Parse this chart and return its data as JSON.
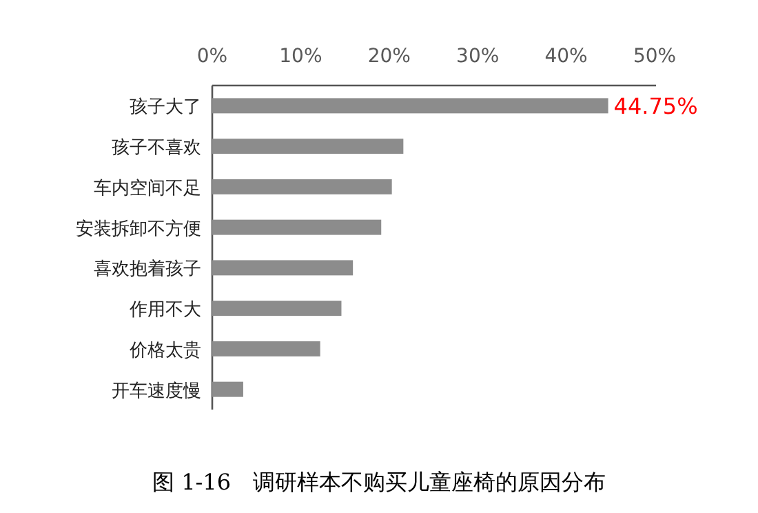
{
  "chart_data": {
    "type": "bar",
    "orientation": "horizontal",
    "title": "图 1-16　调研样本不购买儿童座椅的原因分布",
    "categories": [
      "孩子大了",
      "孩子不喜欢",
      "车内空间不足",
      "安装拆卸不方便",
      "喜欢抱着孩子",
      "作用不大",
      "价格太贵",
      "开车速度慢"
    ],
    "values": [
      44.75,
      21.6,
      20.3,
      19.1,
      15.9,
      14.6,
      12.2,
      3.5
    ],
    "value_labels": [
      "44.75%",
      null,
      null,
      null,
      null,
      null,
      null,
      null
    ],
    "color": "#8c8c8c",
    "xlim": [
      0,
      50
    ],
    "xticks": [
      {
        "value": 0,
        "label": "0%"
      },
      {
        "value": 10,
        "label": "10%"
      },
      {
        "value": 20,
        "label": "20%"
      },
      {
        "value": 30,
        "label": "30%"
      },
      {
        "value": 40,
        "label": "40%"
      },
      {
        "value": 50,
        "label": "50%"
      }
    ],
    "grid": false
  }
}
